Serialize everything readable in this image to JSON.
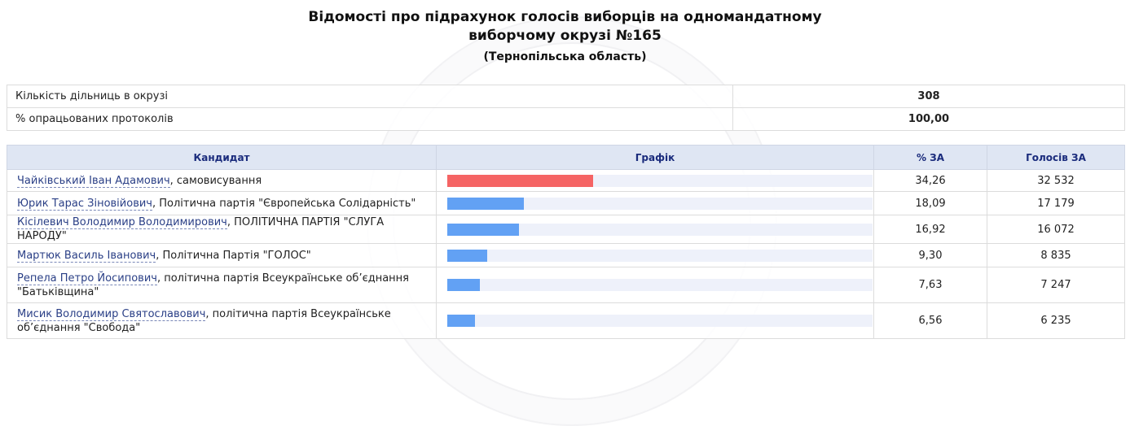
{
  "header": {
    "title_line1": "Відомості про підрахунок голосів виборців на одномандатному",
    "title_line2": "виборчому окрузі №165",
    "region": "(Тернопільська область)"
  },
  "summary": [
    {
      "label": "Кількість дільниць в окрузі",
      "value": "308"
    },
    {
      "label": "% опрацьованих протоколів",
      "value": "100,00"
    }
  ],
  "columns": {
    "candidate": "Кандидат",
    "chart": "Графік",
    "percent": "% ЗА",
    "votes": "Голосів ЗА"
  },
  "colors": {
    "leader_bar": "#f56464",
    "bar": "#62a1f4",
    "track": "#eef1fa",
    "header_bg": "#dfe6f3"
  },
  "candidates": [
    {
      "name": "Чайківський Іван Адамович",
      "party": ", самовисування",
      "percent": "34,26",
      "votes": "32 532",
      "share": 34.26,
      "leader": true
    },
    {
      "name": "Юрик Тарас Зіновійович",
      "party": ", Політична партія \"Європейська Солідарність\"",
      "percent": "18,09",
      "votes": "17 179",
      "share": 18.09,
      "leader": false
    },
    {
      "name": "Кісілевич Володимир Володимирович",
      "party": ", ПОЛІТИЧНА ПАРТІЯ \"СЛУГА НАРОДУ\"",
      "percent": "16,92",
      "votes": "16 072",
      "share": 16.92,
      "leader": false
    },
    {
      "name": "Мартюк Василь Іванович",
      "party": ", Політична Партія \"ГОЛОС\"",
      "percent": "9,30",
      "votes": "8 835",
      "share": 9.3,
      "leader": false
    },
    {
      "name": "Репела Петро Йосипович",
      "party": ", політична партія Всеукраїнське об’єднання \"Батьківщина\"",
      "percent": "7,63",
      "votes": "7 247",
      "share": 7.63,
      "leader": false
    },
    {
      "name": "Мисик Володимир Святославович",
      "party": ", політична партія Всеукраїнське об’єднання \"Свобода\"",
      "percent": "6,56",
      "votes": "6 235",
      "share": 6.56,
      "leader": false
    }
  ]
}
